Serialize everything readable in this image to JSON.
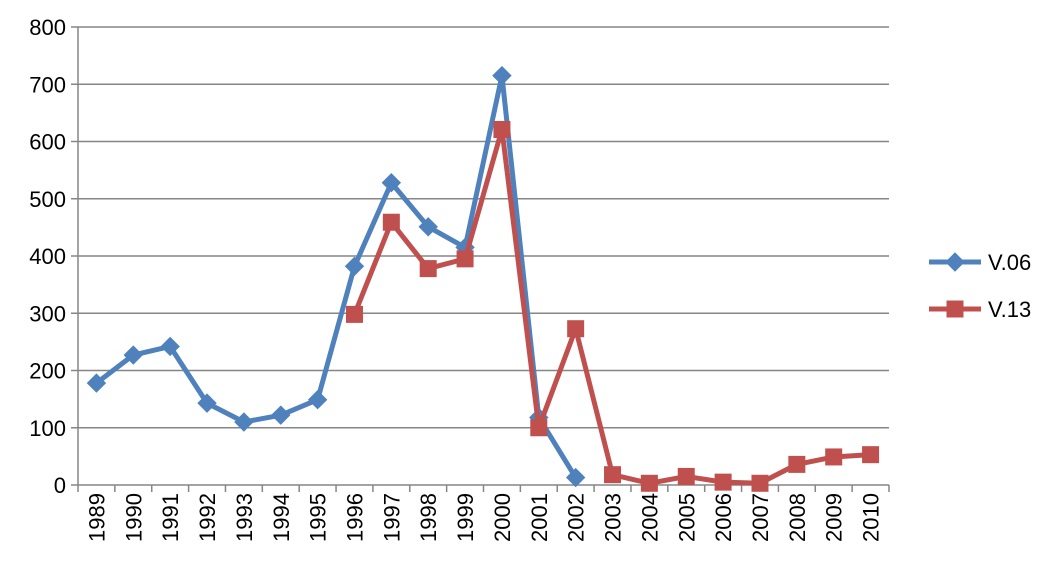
{
  "chart_data": {
    "type": "line",
    "title": "",
    "xlabel": "",
    "ylabel": "",
    "categories": [
      "1989",
      "1990",
      "1991",
      "1992",
      "1993",
      "1994",
      "1995",
      "1996",
      "1997",
      "1998",
      "1999",
      "2000",
      "2001",
      "2002",
      "2003",
      "2004",
      "2005",
      "2006",
      "2007",
      "2008",
      "2009",
      "2010"
    ],
    "ylim": [
      0,
      800
    ],
    "yticks": [
      "0",
      "100",
      "200",
      "300",
      "400",
      "500",
      "600",
      "700",
      "800"
    ],
    "grid": true,
    "legend_position": "right",
    "series": [
      {
        "name": "V.06",
        "color": "#4f81bd",
        "marker": "diamond",
        "values": [
          178,
          227,
          242,
          143,
          110,
          122,
          149,
          382,
          528,
          451,
          415,
          715,
          118,
          13,
          null,
          null,
          null,
          null,
          null,
          null,
          null,
          null
        ]
      },
      {
        "name": "V.13",
        "color": "#c0504d",
        "marker": "square",
        "values": [
          null,
          null,
          null,
          null,
          null,
          null,
          null,
          298,
          459,
          378,
          395,
          621,
          100,
          273,
          18,
          3,
          15,
          5,
          3,
          36,
          49,
          53
        ]
      }
    ]
  }
}
